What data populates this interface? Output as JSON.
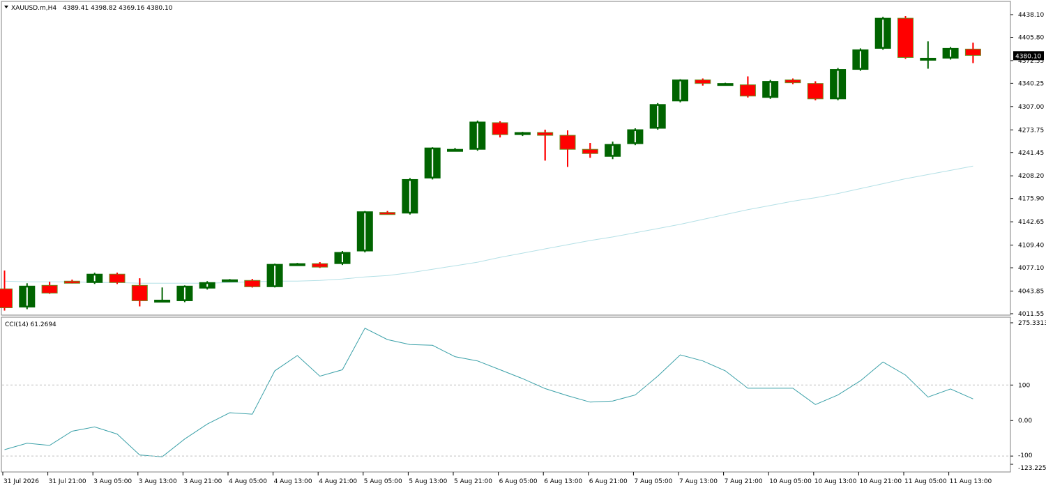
{
  "header": {
    "symbol_label": "XAUUSD.m,H4",
    "ohlc_label": "4389.41 4398.82 4369.16 4380.10"
  },
  "colors": {
    "background": "#ffffff",
    "bull_body": "#006400",
    "bear_body": "#ff0000",
    "ma_line": "#b4e0e6",
    "cci_line": "#3aa0a8",
    "grid_dash": "#c0c0c0",
    "frame": "#808080",
    "price_tag_bg": "#000000"
  },
  "chart_data": [
    {
      "type": "candlestick",
      "title": "XAUUSD.m,H4",
      "ylim": [
        4011.55,
        4438.1
      ],
      "y_ticks": [
        "4438.10",
        "4405.80",
        "4372.55",
        "4340.25",
        "4307.00",
        "4273.75",
        "4241.45",
        "4208.20",
        "4175.90",
        "4142.65",
        "4109.40",
        "4077.10",
        "4043.85",
        "4011.55"
      ],
      "x_ticks": [
        "31 Jul 2026",
        "31 Jul 21:00",
        "3 Aug 05:00",
        "3 Aug 13:00",
        "3 Aug 21:00",
        "4 Aug 05:00",
        "4 Aug 13:00",
        "4 Aug 21:00",
        "5 Aug 05:00",
        "5 Aug 13:00",
        "5 Aug 21:00",
        "6 Aug 05:00",
        "6 Aug 13:00",
        "6 Aug 21:00",
        "7 Aug 05:00",
        "7 Aug 13:00",
        "7 Aug 21:00",
        "10 Aug 05:00",
        "10 Aug 13:00",
        "10 Aug 21:00",
        "11 Aug 05:00",
        "11 Aug 13:00"
      ],
      "current_price": "4380.10",
      "candles": [
        [
          4047,
          4073,
          4016,
          4020
        ],
        [
          4021,
          4055,
          4018,
          4051
        ],
        [
          4052,
          4057,
          4040,
          4041
        ],
        [
          4058,
          4060,
          4056,
          4057
        ],
        [
          4056,
          4070,
          4054,
          4068
        ],
        [
          4068,
          4070,
          4054,
          4056
        ],
        [
          4052,
          4062,
          4022,
          4030
        ],
        [
          4030,
          4049,
          4028,
          4031
        ],
        [
          4030,
          4052,
          4028,
          4051
        ],
        [
          4048,
          4058,
          4046,
          4056
        ],
        [
          4059,
          4061,
          4057,
          4060
        ],
        [
          4059,
          4061,
          4049,
          4050
        ],
        [
          4050,
          4083,
          4049,
          4082
        ],
        [
          4082,
          4084,
          4081,
          4083
        ],
        [
          4083,
          4085,
          4077,
          4078
        ],
        [
          4083,
          4101,
          4081,
          4099
        ],
        [
          4101,
          4158,
          4099,
          4157
        ],
        [
          4156,
          4158,
          4153,
          4155
        ],
        [
          4155,
          4205,
          4153,
          4203
        ],
        [
          4205,
          4249,
          4203,
          4248
        ],
        [
          4246,
          4248,
          4244,
          4246
        ],
        [
          4246,
          4287,
          4244,
          4285
        ],
        [
          4284,
          4286,
          4263,
          4267
        ],
        [
          4267,
          4271,
          4265,
          4270
        ],
        [
          4270,
          4274,
          4230,
          4266
        ],
        [
          4266,
          4273,
          4221,
          4246
        ],
        [
          4246,
          4255,
          4234,
          4240
        ],
        [
          4236,
          4257,
          4232,
          4253
        ],
        [
          4254,
          4276,
          4252,
          4274
        ],
        [
          4276,
          4312,
          4274,
          4310
        ],
        [
          4315,
          4346,
          4313,
          4345
        ],
        [
          4345,
          4347,
          4337,
          4340
        ],
        [
          4340,
          4341,
          4339,
          4340
        ],
        [
          4338,
          4350,
          4320,
          4322
        ],
        [
          4320,
          4345,
          4318,
          4343
        ],
        [
          4345,
          4347,
          4339,
          4341
        ],
        [
          4340,
          4343,
          4316,
          4318
        ],
        [
          4318,
          4362,
          4316,
          4360
        ],
        [
          4360,
          4390,
          4358,
          4388
        ],
        [
          4390,
          4435,
          4388,
          4433
        ],
        [
          4433,
          4436,
          4375,
          4377
        ],
        [
          4375,
          4400,
          4361,
          4376
        ],
        [
          4376,
          4392,
          4374,
          4390
        ],
        [
          4389,
          4398,
          4369,
          4380
        ]
      ],
      "moving_average": [
        4058,
        4057,
        4057,
        4057,
        4056,
        4056,
        4055,
        4055,
        4055,
        4055,
        4056,
        4057,
        4058,
        4058,
        4059,
        4061,
        4064,
        4066,
        4070,
        4075,
        4080,
        4085,
        4092,
        4098,
        4104,
        4110,
        4116,
        4121,
        4127,
        4133,
        4139,
        4146,
        4153,
        4160,
        4166,
        4172,
        4177,
        4183,
        4190,
        4197,
        4204,
        4210,
        4216,
        4222
      ]
    },
    {
      "type": "line",
      "title": "CCI(14) 61.2694",
      "ylim": [
        -123.2255,
        275.3313
      ],
      "y_ticks": [
        "275.3313",
        "100",
        "0.00",
        "-100",
        "-123.2255"
      ],
      "reference_levels": [
        100,
        -100
      ],
      "series": [
        {
          "name": "CCI(14)",
          "values": [
            -82,
            -64,
            -70,
            -30,
            -18,
            -38,
            -97,
            -102,
            -52,
            -10,
            22,
            18,
            140,
            183,
            125,
            143,
            260,
            228,
            214,
            212,
            180,
            168,
            143,
            118,
            90,
            70,
            52,
            55,
            72,
            125,
            185,
            168,
            140,
            91,
            91,
            91,
            45,
            72,
            112,
            165,
            128,
            66,
            89,
            61
          ]
        }
      ]
    }
  ]
}
